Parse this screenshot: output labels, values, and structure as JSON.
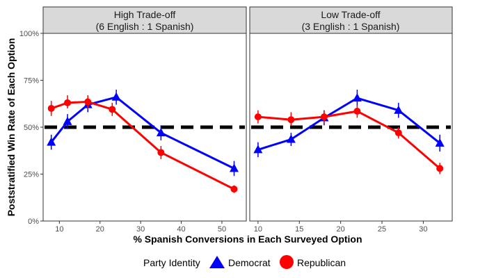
{
  "chart_data": {
    "type": "line",
    "ylabel": "Poststratified Win Rate of Each Option",
    "xlabel": "% Spanish Conversions in Each Surveyed Option",
    "y_ticks": [
      "0%",
      "25%",
      "50%",
      "75%",
      "100%"
    ],
    "y_tick_values": [
      0,
      0.25,
      0.5,
      0.75,
      1.0
    ],
    "ylim": [
      0,
      1.0
    ],
    "reference_line": 0.5,
    "legend": {
      "title": "Party Identity",
      "position": "bottom",
      "entries": [
        "Democrat",
        "Republican"
      ]
    },
    "colors": {
      "Democrat": "#0000ff",
      "Republican": "#ff0000",
      "reference": "#000000"
    },
    "panels": [
      {
        "title_line1": "High Trade-off",
        "title_line2": "(6 English : 1 Spanish)",
        "xlim": [
          6,
          56
        ],
        "x_ticks": [
          10,
          20,
          30,
          40,
          50
        ],
        "series": [
          {
            "name": "Democrat",
            "points": [
              {
                "x": 8,
                "y": 0.42,
                "lo": 0.38,
                "hi": 0.46
              },
              {
                "x": 12,
                "y": 0.53,
                "lo": 0.49,
                "hi": 0.57
              },
              {
                "x": 17,
                "y": 0.62,
                "lo": 0.58,
                "hi": 0.66
              },
              {
                "x": 24,
                "y": 0.66,
                "lo": 0.62,
                "hi": 0.7
              },
              {
                "x": 35,
                "y": 0.47,
                "lo": 0.43,
                "hi": 0.51
              },
              {
                "x": 53,
                "y": 0.28,
                "lo": 0.24,
                "hi": 0.32
              }
            ]
          },
          {
            "name": "Republican",
            "points": [
              {
                "x": 8,
                "y": 0.6,
                "lo": 0.56,
                "hi": 0.64
              },
              {
                "x": 12,
                "y": 0.63,
                "lo": 0.6,
                "hi": 0.67
              },
              {
                "x": 17,
                "y": 0.635,
                "lo": 0.6,
                "hi": 0.67
              },
              {
                "x": 23,
                "y": 0.595,
                "lo": 0.56,
                "hi": 0.63
              },
              {
                "x": 35,
                "y": 0.365,
                "lo": 0.33,
                "hi": 0.4
              },
              {
                "x": 53,
                "y": 0.17,
                "lo": 0.15,
                "hi": 0.19
              }
            ]
          }
        ]
      },
      {
        "title_line1": "Low Trade-off",
        "title_line2": "(3 English : 1 Spanish)",
        "xlim": [
          9,
          33.5
        ],
        "x_ticks": [
          10,
          15,
          20,
          25,
          30
        ],
        "series": [
          {
            "name": "Democrat",
            "points": [
              {
                "x": 10,
                "y": 0.38,
                "lo": 0.34,
                "hi": 0.42
              },
              {
                "x": 14,
                "y": 0.435,
                "lo": 0.4,
                "hi": 0.47
              },
              {
                "x": 18,
                "y": 0.55,
                "lo": 0.51,
                "hi": 0.59
              },
              {
                "x": 22,
                "y": 0.655,
                "lo": 0.61,
                "hi": 0.7
              },
              {
                "x": 27,
                "y": 0.59,
                "lo": 0.55,
                "hi": 0.63
              },
              {
                "x": 32,
                "y": 0.415,
                "lo": 0.37,
                "hi": 0.46
              }
            ]
          },
          {
            "name": "Republican",
            "points": [
              {
                "x": 10,
                "y": 0.555,
                "lo": 0.52,
                "hi": 0.59
              },
              {
                "x": 14,
                "y": 0.54,
                "lo": 0.51,
                "hi": 0.58
              },
              {
                "x": 18,
                "y": 0.555,
                "lo": 0.52,
                "hi": 0.59
              },
              {
                "x": 22,
                "y": 0.585,
                "lo": 0.55,
                "hi": 0.62
              },
              {
                "x": 27,
                "y": 0.47,
                "lo": 0.44,
                "hi": 0.5
              },
              {
                "x": 32,
                "y": 0.28,
                "lo": 0.25,
                "hi": 0.31
              }
            ]
          }
        ]
      }
    ]
  }
}
